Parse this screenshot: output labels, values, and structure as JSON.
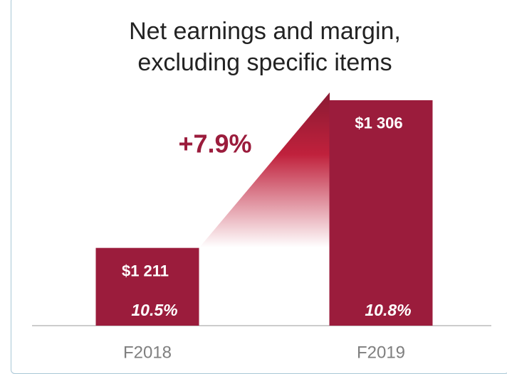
{
  "chart_data": {
    "type": "bar",
    "title": "Net earnings and margin, excluding specific items",
    "categories": [
      "F2018",
      "F2019"
    ],
    "values": [
      1211,
      1306
    ],
    "value_labels": [
      "$1 211",
      "$1 306"
    ],
    "margin_values": [
      10.5,
      10.8
    ],
    "margin_labels": [
      "10.5%",
      "10.8%"
    ],
    "annotation": "+7.9%",
    "color": "#9b1c3c",
    "ylim": [
      1161,
      1311
    ]
  }
}
